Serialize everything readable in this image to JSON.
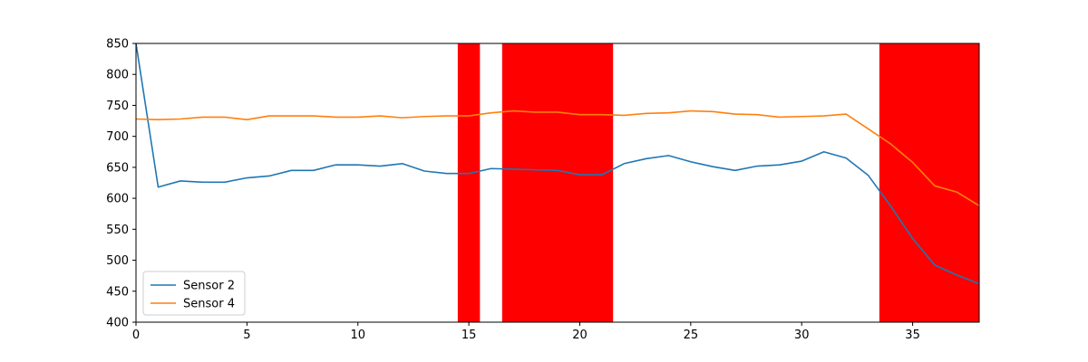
{
  "chart_data": {
    "type": "line",
    "title": "",
    "xlabel": "",
    "ylabel": "",
    "xlim": [
      0,
      38
    ],
    "ylim": [
      400,
      850
    ],
    "x_ticks": [
      0,
      5,
      10,
      15,
      20,
      25,
      30,
      35
    ],
    "y_ticks": [
      400,
      450,
      500,
      550,
      600,
      650,
      700,
      750,
      800,
      850
    ],
    "grid": false,
    "legend_position": "lower-left",
    "highlight_color": "#ff0000",
    "highlight_ranges": [
      [
        14.5,
        15.5
      ],
      [
        16.5,
        21.5
      ],
      [
        33.5,
        38
      ]
    ],
    "series": [
      {
        "name": "Sensor 2",
        "color": "#1f77b4",
        "x": [
          0,
          1,
          2,
          3,
          4,
          5,
          6,
          7,
          8,
          9,
          10,
          11,
          12,
          13,
          14,
          15,
          16,
          17,
          18,
          19,
          20,
          21,
          22,
          23,
          24,
          25,
          26,
          27,
          28,
          29,
          30,
          31,
          32,
          33,
          34,
          35,
          36,
          37,
          38
        ],
        "values": [
          850,
          618,
          628,
          626,
          626,
          633,
          636,
          645,
          645,
          654,
          654,
          652,
          656,
          644,
          640,
          640,
          648,
          647,
          646,
          645,
          638,
          638,
          656,
          664,
          669,
          659,
          651,
          645,
          652,
          654,
          660,
          675,
          665,
          637,
          588,
          535,
          492,
          476,
          462
        ]
      },
      {
        "name": "Sensor 4",
        "color": "#ff7f0e",
        "x": [
          0,
          1,
          2,
          3,
          4,
          5,
          6,
          7,
          8,
          9,
          10,
          11,
          12,
          13,
          14,
          15,
          16,
          17,
          18,
          19,
          20,
          21,
          22,
          23,
          24,
          25,
          26,
          27,
          28,
          29,
          30,
          31,
          32,
          33,
          34,
          35,
          36,
          37,
          38
        ],
        "values": [
          728,
          727,
          728,
          731,
          731,
          727,
          733,
          733,
          733,
          731,
          731,
          733,
          730,
          732,
          733,
          733,
          738,
          741,
          739,
          739,
          735,
          735,
          734,
          737,
          738,
          741,
          740,
          736,
          735,
          731,
          732,
          733,
          736,
          712,
          688,
          658,
          620,
          610,
          588
        ]
      }
    ]
  }
}
